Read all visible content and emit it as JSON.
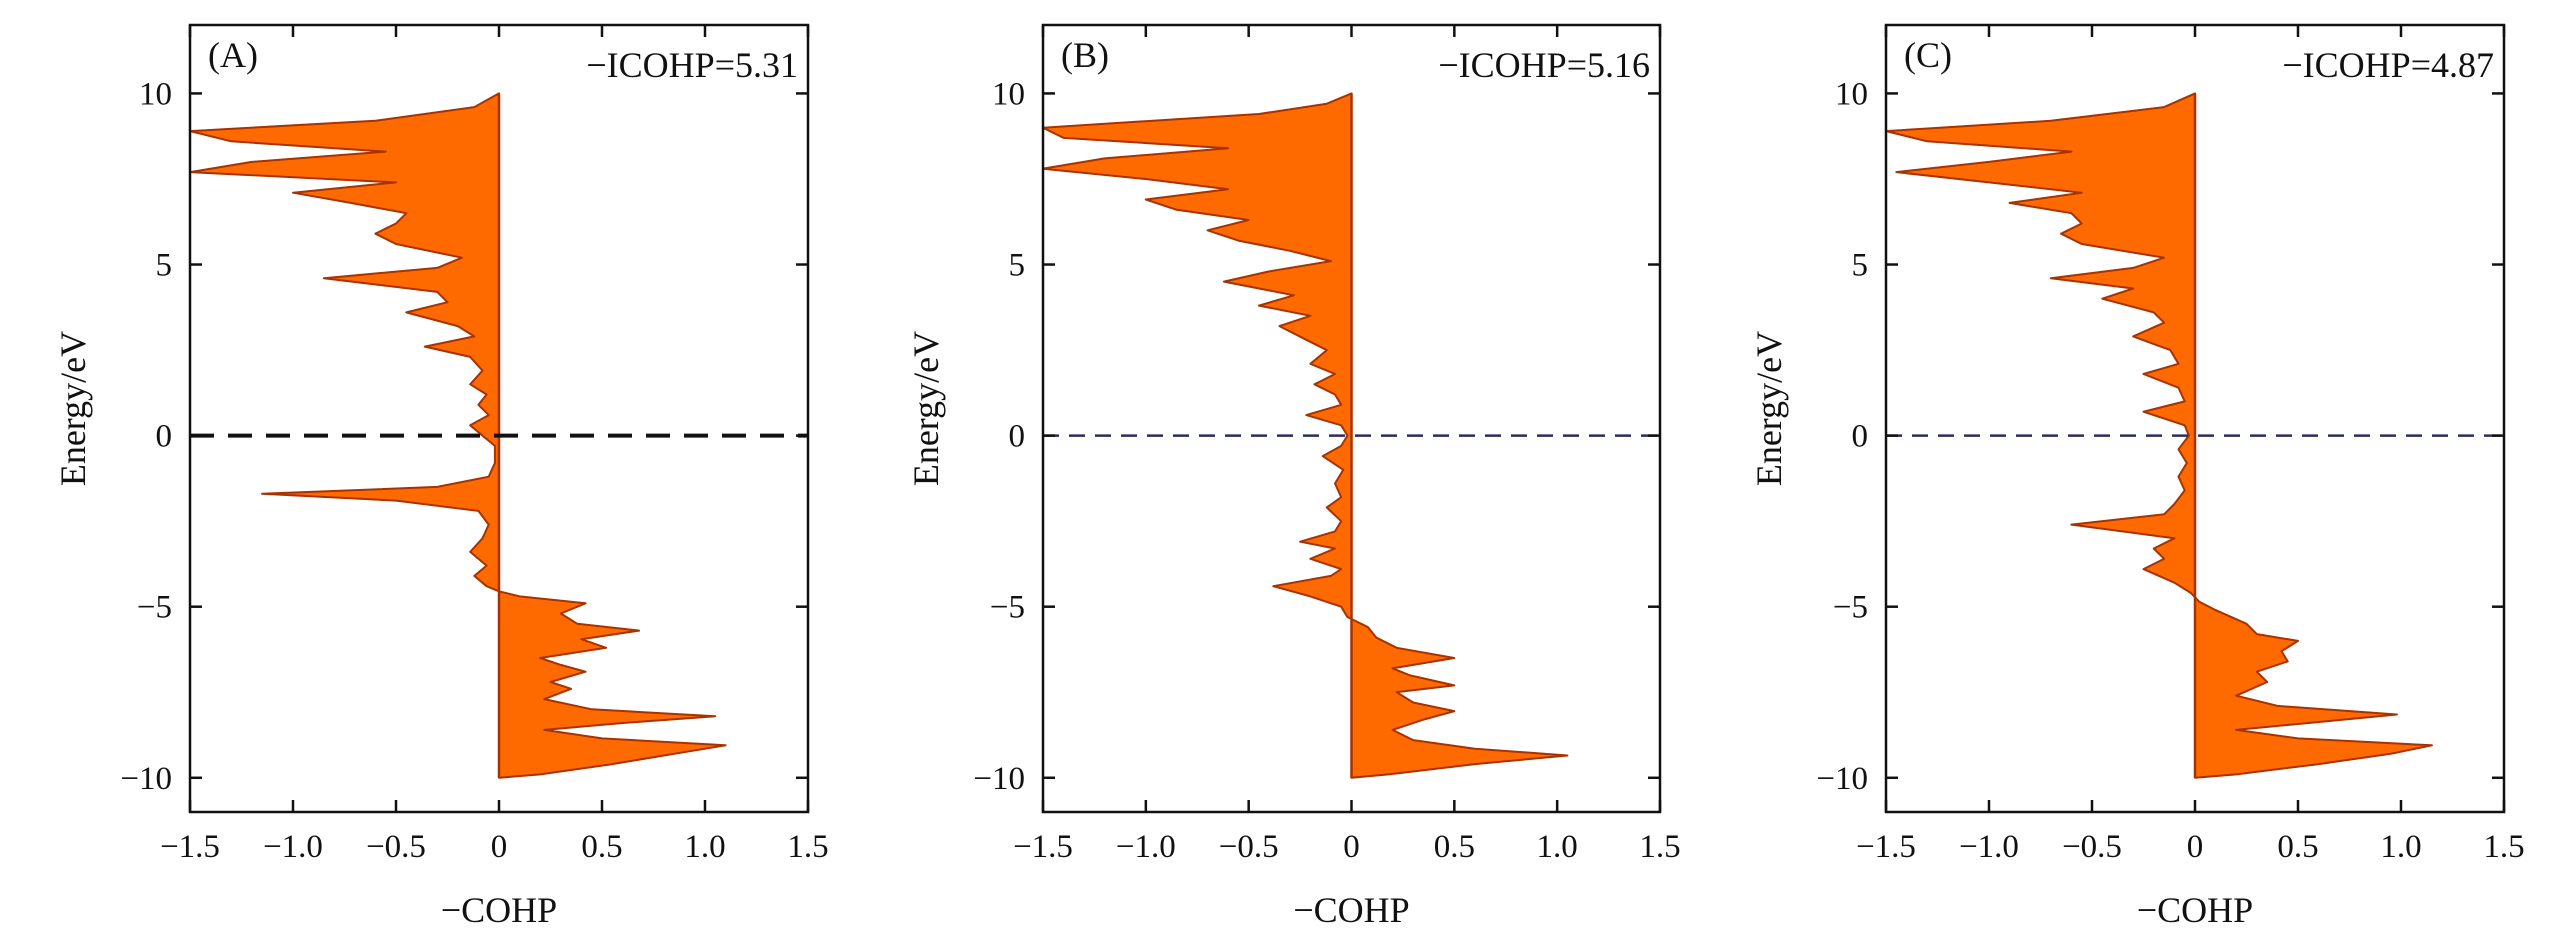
{
  "chart_data": [
    {
      "type": "area",
      "panel_label": "(A)",
      "annotation": "−ICOHP=5.31",
      "xlabel": "−COHP",
      "ylabel": "Energy/eV",
      "xlim": [
        -1.5,
        1.5
      ],
      "ylim": [
        -11,
        12
      ],
      "xticks": [
        -1.5,
        -1.0,
        -0.5,
        0,
        0.5,
        1.0,
        1.5
      ],
      "xtick_labels": [
        "−1.5",
        "−1.0",
        "−0.5",
        "0",
        "0.5",
        "1.0",
        "1.5"
      ],
      "yticks": [
        -10,
        -5,
        0,
        5,
        10
      ],
      "ytick_labels": [
        "−10",
        "−5",
        "0",
        "5",
        "10"
      ],
      "fermi_level": 0,
      "fill_color": "#ff6a00",
      "edge_color": "#a83200",
      "series": [
        {
          "y": -10.0,
          "x": 0.0
        },
        {
          "y": -9.9,
          "x": 0.2
        },
        {
          "y": -9.6,
          "x": 0.55
        },
        {
          "y": -9.3,
          "x": 0.85
        },
        {
          "y": -9.05,
          "x": 1.1
        },
        {
          "y": -8.85,
          "x": 0.5
        },
        {
          "y": -8.6,
          "x": 0.22
        },
        {
          "y": -8.4,
          "x": 0.6
        },
        {
          "y": -8.2,
          "x": 1.05
        },
        {
          "y": -8.0,
          "x": 0.45
        },
        {
          "y": -7.7,
          "x": 0.22
        },
        {
          "y": -7.4,
          "x": 0.35
        },
        {
          "y": -7.2,
          "x": 0.25
        },
        {
          "y": -6.9,
          "x": 0.42
        },
        {
          "y": -6.7,
          "x": 0.3
        },
        {
          "y": -6.5,
          "x": 0.2
        },
        {
          "y": -6.2,
          "x": 0.52
        },
        {
          "y": -5.95,
          "x": 0.4
        },
        {
          "y": -5.7,
          "x": 0.68
        },
        {
          "y": -5.5,
          "x": 0.38
        },
        {
          "y": -5.2,
          "x": 0.3
        },
        {
          "y": -4.9,
          "x": 0.42
        },
        {
          "y": -4.7,
          "x": 0.1
        },
        {
          "y": -4.55,
          "x": 0.0
        },
        {
          "y": -4.4,
          "x": -0.06
        },
        {
          "y": -4.1,
          "x": -0.12
        },
        {
          "y": -3.8,
          "x": -0.06
        },
        {
          "y": -3.4,
          "x": -0.14
        },
        {
          "y": -3.0,
          "x": -0.08
        },
        {
          "y": -2.6,
          "x": -0.05
        },
        {
          "y": -2.2,
          "x": -0.1
        },
        {
          "y": -1.9,
          "x": -0.5
        },
        {
          "y": -1.7,
          "x": -1.15
        },
        {
          "y": -1.5,
          "x": -0.3
        },
        {
          "y": -1.2,
          "x": -0.05
        },
        {
          "y": -0.8,
          "x": -0.02
        },
        {
          "y": -0.3,
          "x": -0.02
        },
        {
          "y": 0.0,
          "x": -0.08
        },
        {
          "y": 0.3,
          "x": -0.14
        },
        {
          "y": 0.6,
          "x": -0.05
        },
        {
          "y": 0.9,
          "x": -0.1
        },
        {
          "y": 1.2,
          "x": -0.06
        },
        {
          "y": 1.5,
          "x": -0.14
        },
        {
          "y": 1.9,
          "x": -0.08
        },
        {
          "y": 2.3,
          "x": -0.14
        },
        {
          "y": 2.6,
          "x": -0.36
        },
        {
          "y": 2.9,
          "x": -0.12
        },
        {
          "y": 3.2,
          "x": -0.2
        },
        {
          "y": 3.6,
          "x": -0.45
        },
        {
          "y": 3.9,
          "x": -0.25
        },
        {
          "y": 4.2,
          "x": -0.3
        },
        {
          "y": 4.6,
          "x": -0.85
        },
        {
          "y": 4.9,
          "x": -0.3
        },
        {
          "y": 5.2,
          "x": -0.18
        },
        {
          "y": 5.6,
          "x": -0.5
        },
        {
          "y": 5.9,
          "x": -0.6
        },
        {
          "y": 6.2,
          "x": -0.5
        },
        {
          "y": 6.5,
          "x": -0.45
        },
        {
          "y": 6.8,
          "x": -0.72
        },
        {
          "y": 7.1,
          "x": -1.0
        },
        {
          "y": 7.4,
          "x": -0.5
        },
        {
          "y": 7.7,
          "x": -1.5
        },
        {
          "y": 8.0,
          "x": -1.2
        },
        {
          "y": 8.3,
          "x": -0.55
        },
        {
          "y": 8.6,
          "x": -1.3
        },
        {
          "y": 8.9,
          "x": -1.5
        },
        {
          "y": 9.2,
          "x": -0.6
        },
        {
          "y": 9.6,
          "x": -0.12
        },
        {
          "y": 10.0,
          "x": 0.0
        }
      ]
    },
    {
      "type": "area",
      "panel_label": "(B)",
      "annotation": "−ICOHP=5.16",
      "xlabel": "−COHP",
      "ylabel": "Energy/eV",
      "xlim": [
        -1.5,
        1.5
      ],
      "ylim": [
        -11,
        12
      ],
      "xticks": [
        -1.5,
        -1.0,
        -0.5,
        0,
        0.5,
        1.0,
        1.5
      ],
      "xtick_labels": [
        "−1.5",
        "−1.0",
        "−0.5",
        "0",
        "0.5",
        "1.0",
        "1.5"
      ],
      "yticks": [
        -10,
        -5,
        0,
        5,
        10
      ],
      "ytick_labels": [
        "−10",
        "−5",
        "0",
        "5",
        "10"
      ],
      "fermi_level": 0,
      "fill_color": "#ff6a00",
      "edge_color": "#a83200",
      "series": [
        {
          "y": -10.0,
          "x": 0.0
        },
        {
          "y": -9.9,
          "x": 0.18
        },
        {
          "y": -9.6,
          "x": 0.6
        },
        {
          "y": -9.35,
          "x": 1.05
        },
        {
          "y": -9.15,
          "x": 0.6
        },
        {
          "y": -8.9,
          "x": 0.3
        },
        {
          "y": -8.6,
          "x": 0.2
        },
        {
          "y": -8.3,
          "x": 0.35
        },
        {
          "y": -8.05,
          "x": 0.5
        },
        {
          "y": -7.8,
          "x": 0.3
        },
        {
          "y": -7.5,
          "x": 0.22
        },
        {
          "y": -7.3,
          "x": 0.5
        },
        {
          "y": -7.0,
          "x": 0.28
        },
        {
          "y": -6.8,
          "x": 0.2
        },
        {
          "y": -6.5,
          "x": 0.5
        },
        {
          "y": -6.2,
          "x": 0.22
        },
        {
          "y": -5.9,
          "x": 0.12
        },
        {
          "y": -5.6,
          "x": 0.08
        },
        {
          "y": -5.3,
          "x": -0.02
        },
        {
          "y": -5.0,
          "x": -0.05
        },
        {
          "y": -4.7,
          "x": -0.2
        },
        {
          "y": -4.4,
          "x": -0.38
        },
        {
          "y": -4.1,
          "x": -0.1
        },
        {
          "y": -3.9,
          "x": -0.05
        },
        {
          "y": -3.6,
          "x": -0.2
        },
        {
          "y": -3.3,
          "x": -0.08
        },
        {
          "y": -3.1,
          "x": -0.25
        },
        {
          "y": -2.8,
          "x": -0.08
        },
        {
          "y": -2.5,
          "x": -0.05
        },
        {
          "y": -2.1,
          "x": -0.12
        },
        {
          "y": -1.8,
          "x": -0.05
        },
        {
          "y": -1.4,
          "x": -0.08
        },
        {
          "y": -1.0,
          "x": -0.04
        },
        {
          "y": -0.6,
          "x": -0.14
        },
        {
          "y": -0.3,
          "x": -0.05
        },
        {
          "y": 0.0,
          "x": -0.02
        },
        {
          "y": 0.3,
          "x": -0.05
        },
        {
          "y": 0.6,
          "x": -0.22
        },
        {
          "y": 0.9,
          "x": -0.05
        },
        {
          "y": 1.2,
          "x": -0.08
        },
        {
          "y": 1.5,
          "x": -0.18
        },
        {
          "y": 1.8,
          "x": -0.08
        },
        {
          "y": 2.1,
          "x": -0.2
        },
        {
          "y": 2.5,
          "x": -0.12
        },
        {
          "y": 2.8,
          "x": -0.22
        },
        {
          "y": 3.2,
          "x": -0.35
        },
        {
          "y": 3.5,
          "x": -0.2
        },
        {
          "y": 3.8,
          "x": -0.45
        },
        {
          "y": 4.1,
          "x": -0.28
        },
        {
          "y": 4.5,
          "x": -0.62
        },
        {
          "y": 4.8,
          "x": -0.4
        },
        {
          "y": 5.1,
          "x": -0.1
        },
        {
          "y": 5.4,
          "x": -0.3
        },
        {
          "y": 5.7,
          "x": -0.55
        },
        {
          "y": 6.0,
          "x": -0.7
        },
        {
          "y": 6.3,
          "x": -0.5
        },
        {
          "y": 6.6,
          "x": -0.85
        },
        {
          "y": 6.9,
          "x": -1.0
        },
        {
          "y": 7.2,
          "x": -0.6
        },
        {
          "y": 7.5,
          "x": -1.0
        },
        {
          "y": 7.8,
          "x": -1.5
        },
        {
          "y": 8.1,
          "x": -1.2
        },
        {
          "y": 8.4,
          "x": -0.6
        },
        {
          "y": 8.7,
          "x": -1.4
        },
        {
          "y": 9.0,
          "x": -1.5
        },
        {
          "y": 9.4,
          "x": -0.45
        },
        {
          "y": 9.7,
          "x": -0.12
        },
        {
          "y": 10.0,
          "x": 0.0
        }
      ]
    },
    {
      "type": "area",
      "panel_label": "(C)",
      "annotation": "−ICOHP=4.87",
      "xlabel": "−COHP",
      "ylabel": "Energy/eV",
      "xlim": [
        -1.5,
        1.5
      ],
      "ylim": [
        -11,
        12
      ],
      "xticks": [
        -1.5,
        -1.0,
        -0.5,
        0,
        0.5,
        1.0,
        1.5
      ],
      "xtick_labels": [
        "−1.5",
        "−1.0",
        "−0.5",
        "0",
        "0.5",
        "1.0",
        "1.5"
      ],
      "yticks": [
        -10,
        -5,
        0,
        5,
        10
      ],
      "ytick_labels": [
        "−10",
        "−5",
        "0",
        "5",
        "10"
      ],
      "fermi_level": 0,
      "fill_color": "#ff6a00",
      "edge_color": "#a83200",
      "series": [
        {
          "y": -10.0,
          "x": 0.0
        },
        {
          "y": -9.9,
          "x": 0.2
        },
        {
          "y": -9.6,
          "x": 0.6
        },
        {
          "y": -9.3,
          "x": 0.95
        },
        {
          "y": -9.05,
          "x": 1.15
        },
        {
          "y": -8.85,
          "x": 0.5
        },
        {
          "y": -8.6,
          "x": 0.2
        },
        {
          "y": -8.4,
          "x": 0.55
        },
        {
          "y": -8.15,
          "x": 0.98
        },
        {
          "y": -7.9,
          "x": 0.4
        },
        {
          "y": -7.6,
          "x": 0.2
        },
        {
          "y": -7.2,
          "x": 0.35
        },
        {
          "y": -6.9,
          "x": 0.3
        },
        {
          "y": -6.6,
          "x": 0.45
        },
        {
          "y": -6.3,
          "x": 0.42
        },
        {
          "y": -6.0,
          "x": 0.5
        },
        {
          "y": -5.8,
          "x": 0.3
        },
        {
          "y": -5.5,
          "x": 0.25
        },
        {
          "y": -5.1,
          "x": 0.1
        },
        {
          "y": -4.85,
          "x": 0.02
        },
        {
          "y": -4.6,
          "x": -0.02
        },
        {
          "y": -4.3,
          "x": -0.1
        },
        {
          "y": -3.9,
          "x": -0.25
        },
        {
          "y": -3.6,
          "x": -0.15
        },
        {
          "y": -3.3,
          "x": -0.2
        },
        {
          "y": -3.0,
          "x": -0.1
        },
        {
          "y": -2.6,
          "x": -0.6
        },
        {
          "y": -2.3,
          "x": -0.15
        },
        {
          "y": -2.0,
          "x": -0.1
        },
        {
          "y": -1.6,
          "x": -0.05
        },
        {
          "y": -1.2,
          "x": -0.08
        },
        {
          "y": -0.8,
          "x": -0.04
        },
        {
          "y": -0.4,
          "x": -0.08
        },
        {
          "y": 0.0,
          "x": -0.03
        },
        {
          "y": 0.3,
          "x": -0.05
        },
        {
          "y": 0.7,
          "x": -0.25
        },
        {
          "y": 1.0,
          "x": -0.05
        },
        {
          "y": 1.4,
          "x": -0.08
        },
        {
          "y": 1.8,
          "x": -0.25
        },
        {
          "y": 2.1,
          "x": -0.08
        },
        {
          "y": 2.5,
          "x": -0.12
        },
        {
          "y": 2.9,
          "x": -0.3
        },
        {
          "y": 3.3,
          "x": -0.15
        },
        {
          "y": 3.6,
          "x": -0.2
        },
        {
          "y": 4.0,
          "x": -0.45
        },
        {
          "y": 4.3,
          "x": -0.3
        },
        {
          "y": 4.6,
          "x": -0.7
        },
        {
          "y": 4.9,
          "x": -0.3
        },
        {
          "y": 5.2,
          "x": -0.15
        },
        {
          "y": 5.6,
          "x": -0.55
        },
        {
          "y": 5.9,
          "x": -0.65
        },
        {
          "y": 6.2,
          "x": -0.55
        },
        {
          "y": 6.5,
          "x": -0.6
        },
        {
          "y": 6.8,
          "x": -0.9
        },
        {
          "y": 7.1,
          "x": -0.55
        },
        {
          "y": 7.4,
          "x": -1.0
        },
        {
          "y": 7.7,
          "x": -1.45
        },
        {
          "y": 8.0,
          "x": -1.0
        },
        {
          "y": 8.3,
          "x": -0.6
        },
        {
          "y": 8.6,
          "x": -1.3
        },
        {
          "y": 8.9,
          "x": -1.5
        },
        {
          "y": 9.2,
          "x": -0.7
        },
        {
          "y": 9.6,
          "x": -0.15
        },
        {
          "y": 10.0,
          "x": 0.0
        }
      ]
    }
  ]
}
